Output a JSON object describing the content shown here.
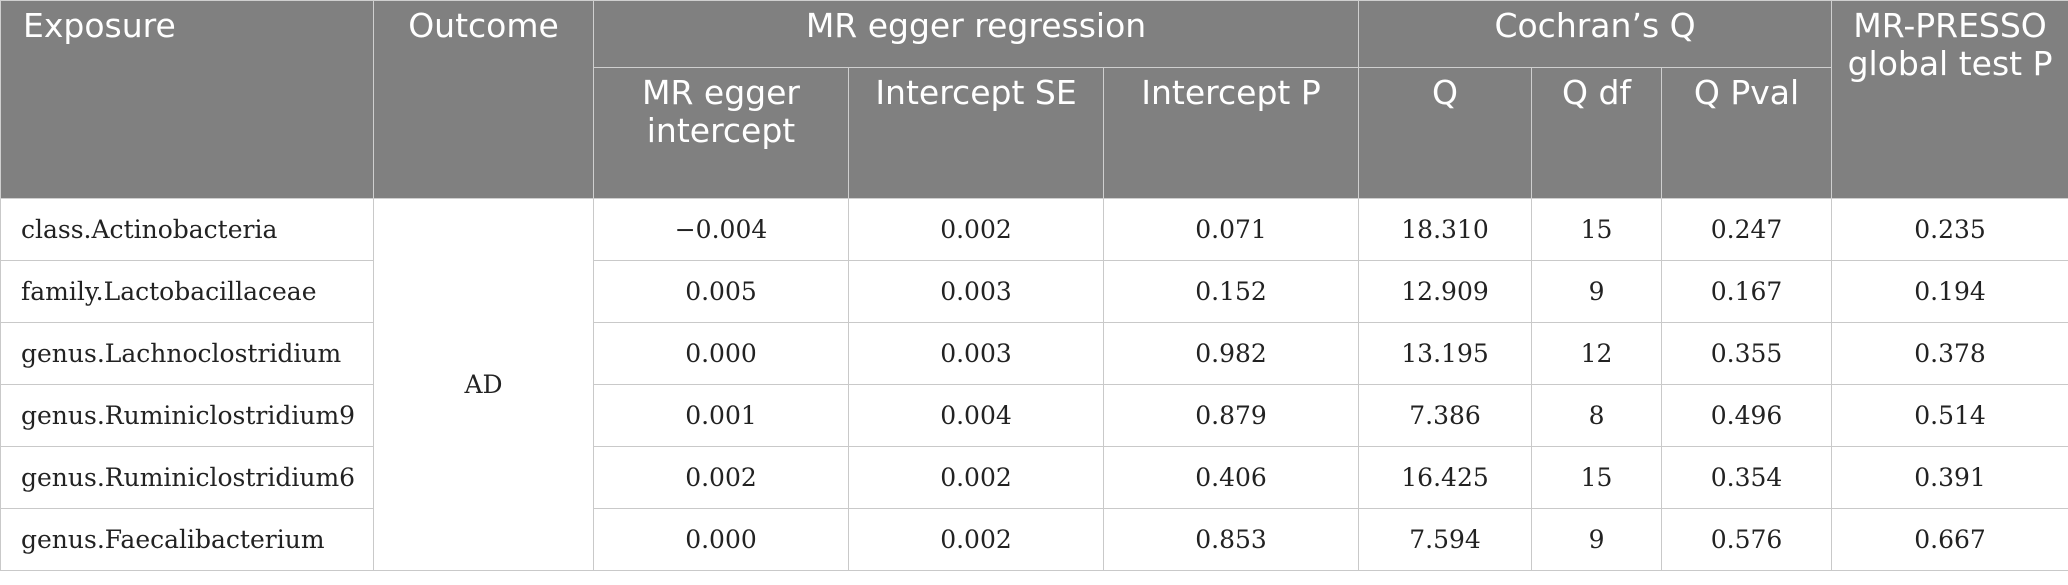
{
  "header": {
    "exposure": "Exposure",
    "outcome": "Outcome",
    "mr_egger_group": "MR egger regression",
    "cochran_group": "Cochran’s Q",
    "mr_presso": "MR-PRESSO global test P",
    "sub": {
      "intercept": "MR egger intercept",
      "intercept_se": "Intercept SE",
      "intercept_p": "Intercept P",
      "q": "Q",
      "q_df": "Q df",
      "q_pval": "Q Pval"
    }
  },
  "outcome_value": "AD",
  "rows": [
    {
      "exposure": "class.Actinobacteria",
      "intercept": "−0.004",
      "intercept_se": "0.002",
      "intercept_p": "0.071",
      "q": "18.310",
      "q_df": "15",
      "q_pval": "0.247",
      "presso_p": "0.235"
    },
    {
      "exposure": "family.Lactobacillaceae",
      "intercept": "0.005",
      "intercept_se": "0.003",
      "intercept_p": "0.152",
      "q": "12.909",
      "q_df": "9",
      "q_pval": "0.167",
      "presso_p": "0.194"
    },
    {
      "exposure": "genus.Lachnoclostridium",
      "intercept": "0.000",
      "intercept_se": "0.003",
      "intercept_p": "0.982",
      "q": "13.195",
      "q_df": "12",
      "q_pval": "0.355",
      "presso_p": "0.378"
    },
    {
      "exposure": "genus.Ruminiclostridium9",
      "intercept": "0.001",
      "intercept_se": "0.004",
      "intercept_p": "0.879",
      "q": "7.386",
      "q_df": "8",
      "q_pval": "0.496",
      "presso_p": "0.514"
    },
    {
      "exposure": "genus.Ruminiclostridium6",
      "intercept": "0.002",
      "intercept_se": "0.002",
      "intercept_p": "0.406",
      "q": "16.425",
      "q_df": "15",
      "q_pval": "0.354",
      "presso_p": "0.391"
    },
    {
      "exposure": "genus.Faecalibacterium",
      "intercept": "0.000",
      "intercept_se": "0.002",
      "intercept_p": "0.853",
      "q": "7.594",
      "q_df": "9",
      "q_pval": "0.576",
      "presso_p": "0.667"
    }
  ]
}
